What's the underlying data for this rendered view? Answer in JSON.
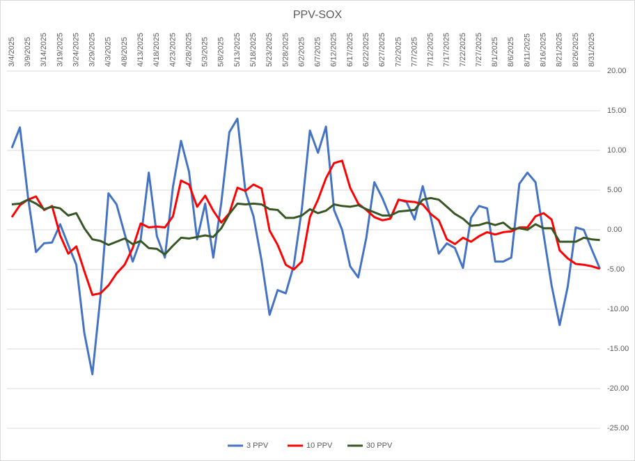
{
  "chart_data": {
    "type": "line",
    "title": "PPV-SOX",
    "categories": [
      "3/4/2025",
      null,
      "3/9/2025",
      null,
      "3/14/2025",
      null,
      "3/19/2025",
      null,
      "3/24/2025",
      null,
      "3/29/2025",
      null,
      "4/3/2025",
      null,
      "4/8/2025",
      null,
      "4/13/2025",
      null,
      "4/18/2025",
      null,
      "4/23/2025",
      null,
      "4/28/2025",
      null,
      "5/3/2025",
      null,
      "5/8/2025",
      null,
      "5/13/2025",
      null,
      "5/18/2025",
      null,
      "5/23/2025",
      null,
      "5/28/2025",
      null,
      "6/2/2025",
      null,
      "6/7/2025",
      null,
      "6/12/2025",
      null,
      "6/17/2025",
      null,
      "6/22/2025",
      null,
      "6/27/2025",
      null,
      "7/2/2025",
      null,
      "7/7/2025",
      null,
      "7/12/2025",
      null,
      "7/17/2025",
      null,
      "7/22/2025",
      null,
      "7/27/2025",
      null,
      "8/1/2025",
      null,
      "8/6/2025",
      null,
      "8/11/2025",
      null,
      "8/16/2025",
      null,
      "8/21/2025",
      null,
      "8/26/2025",
      null,
      "8/31/2025",
      null
    ],
    "series": [
      {
        "name": "3 PPV",
        "color": "#4472c4",
        "values": [
          10.3,
          12.9,
          4.2,
          -2.8,
          -1.7,
          -1.6,
          0.7,
          -1.9,
          -4.4,
          -13,
          -18.2,
          -8.4,
          4.6,
          3.2,
          -0.5,
          -4,
          -1.2,
          7.2,
          -0.8,
          -3.5,
          5.4,
          11.2,
          7.3,
          -1.2,
          3.3,
          -3.5,
          3.4,
          12.3,
          14,
          4.8,
          1.7,
          -3.9,
          -10.7,
          -7.6,
          -8,
          -4.5,
          2.6,
          12.5,
          9.7,
          13,
          2.5,
          0,
          -4.6,
          -6,
          -1,
          6,
          4,
          1.5,
          3.8,
          3.5,
          1.3,
          5.5,
          1.6,
          -3,
          -1.7,
          -2.3,
          -4.8,
          1.5,
          3,
          2.7,
          -4,
          -4,
          -3.5,
          5.8,
          7.2,
          6,
          -0.5,
          -7,
          -12,
          -7.2,
          0.3,
          0,
          -2.5,
          -4.9
        ]
      },
      {
        "name": "10 PPV",
        "color": "#ff0000",
        "values": [
          1.6,
          3.1,
          3.8,
          4.2,
          2.5,
          3,
          -0.7,
          -3,
          -2.1,
          -5.2,
          -8.2,
          -8,
          -7,
          -5.5,
          -4.4,
          -2.3,
          0.8,
          0.3,
          0.4,
          0.3,
          1.7,
          6.2,
          5.7,
          2.9,
          4.3,
          2.4,
          0.9,
          2.1,
          5.3,
          4.9,
          5.7,
          5.2,
          -0.1,
          -1.9,
          -4.4,
          -5,
          -4,
          1.6,
          3.8,
          6.5,
          8.4,
          8.7,
          5.3,
          3.3,
          2.5,
          1.6,
          1.2,
          1.4,
          3.8,
          3.6,
          3.5,
          3.2,
          2,
          1.2,
          -1.2,
          -1.8,
          -1,
          -1.5,
          -0.8,
          -0.3,
          -0.6,
          -0.3,
          -0.2,
          0.3,
          0.3,
          1.7,
          2.1,
          1.3,
          -2.6,
          -3.6,
          -4.3,
          -4.4,
          -4.6,
          -4.9
        ]
      },
      {
        "name": "30 PPV",
        "color": "#375623",
        "values": [
          3.2,
          3.3,
          3.8,
          3.3,
          2.6,
          2.9,
          2.7,
          1.8,
          2.1,
          0.2,
          -1.2,
          -1.4,
          -1.9,
          -1.5,
          -1.1,
          -1.8,
          -1.4,
          -2.3,
          -2.4,
          -3.1,
          -2,
          -1,
          -1.1,
          -0.9,
          -0.7,
          -0.9,
          0.2,
          2,
          3.3,
          3.2,
          3.3,
          3.2,
          2.6,
          2.5,
          1.5,
          1.5,
          1.8,
          2.6,
          2.1,
          2.4,
          3.2,
          3,
          2.9,
          3.1,
          2.6,
          2.2,
          1.8,
          1.8,
          2.3,
          2.4,
          2.5,
          3.8,
          4,
          3.8,
          2.9,
          2,
          1.4,
          0.5,
          0.6,
          0.9,
          0.6,
          0.9,
          0.1,
          0.2,
          0,
          0.7,
          0.2,
          0.2,
          -1.5,
          -1.5,
          -1.5,
          -1,
          -1.2,
          -1.3
        ]
      }
    ],
    "ylim": [
      -25,
      20
    ],
    "yticks": [
      {
        "value": 20,
        "label": "20.00"
      },
      {
        "value": 15,
        "label": "15.00"
      },
      {
        "value": 10,
        "label": "10.00"
      },
      {
        "value": 5,
        "label": "5.00"
      },
      {
        "value": 0,
        "label": "0.00"
      },
      {
        "value": -5,
        "label": "-5.00"
      },
      {
        "value": -10,
        "label": "-10.00"
      },
      {
        "value": -15,
        "label": "-15.00"
      },
      {
        "value": -20,
        "label": "-20.00"
      },
      {
        "value": -25,
        "label": "-25.00"
      }
    ],
    "grid": true,
    "legend": "bottom"
  }
}
